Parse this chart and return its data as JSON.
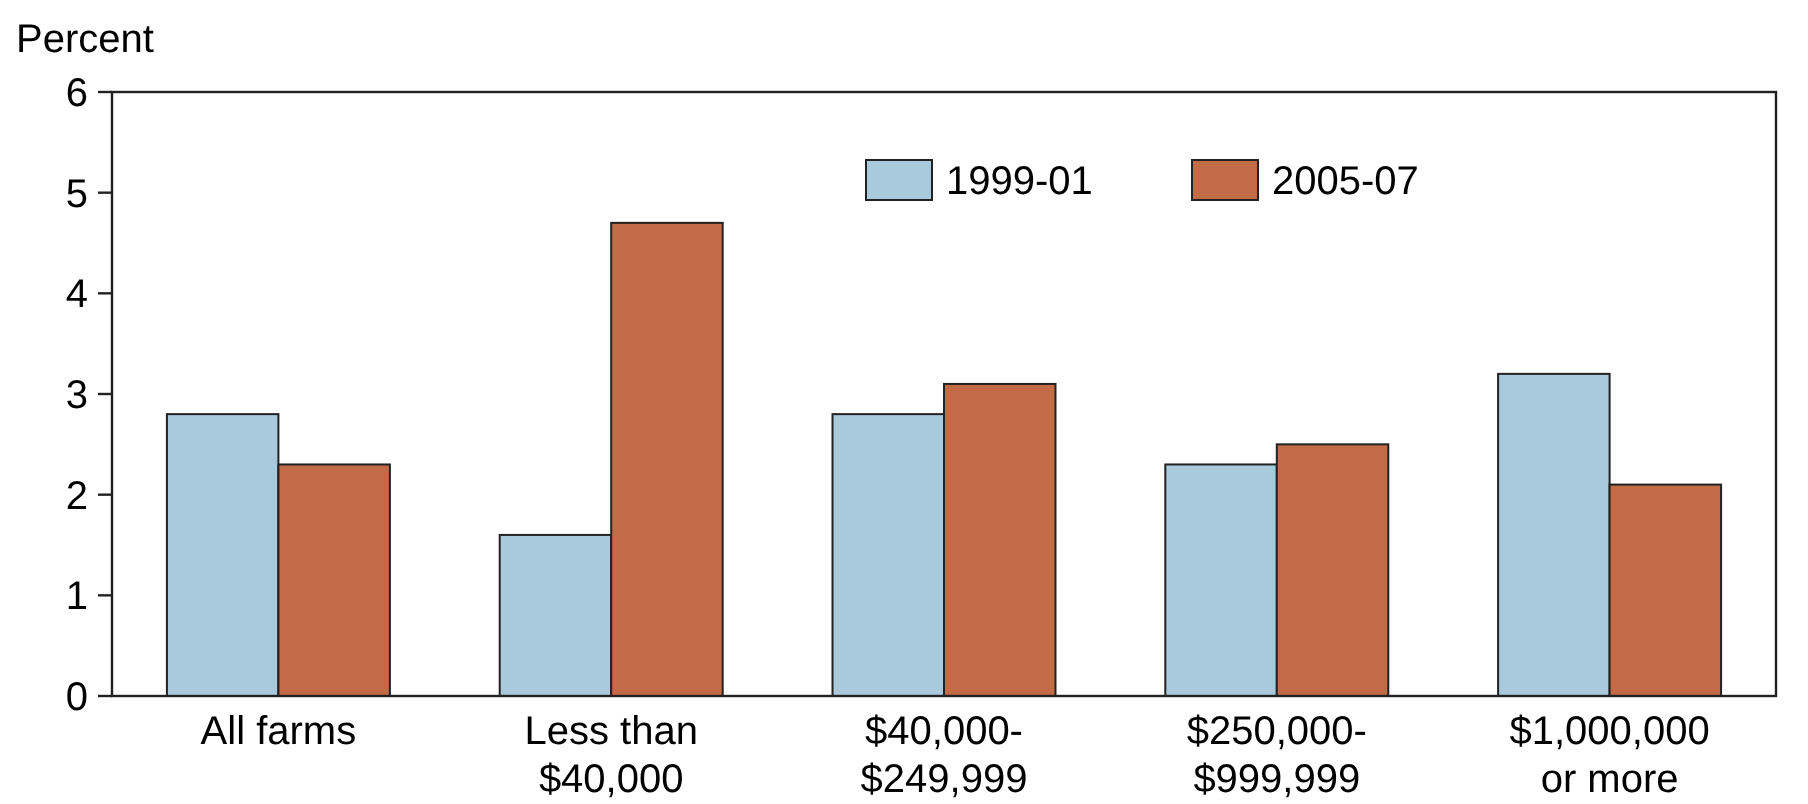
{
  "chart_data": {
    "type": "bar",
    "ylabel": "Percent",
    "categories": [
      "All farms",
      "Less than\n$40,000",
      "$40,000-\n$249,999",
      "$250,000-\n$999,999",
      "$1,000,000\nor more"
    ],
    "series": [
      {
        "name": "1999-01",
        "color": "#a9cadc",
        "values": [
          2.8,
          1.6,
          2.8,
          2.3,
          3.2
        ]
      },
      {
        "name": "2005-07",
        "color": "#c36b47",
        "values": [
          2.3,
          4.7,
          3.1,
          2.5,
          2.1
        ]
      }
    ],
    "ylim": [
      0,
      6
    ],
    "yticks": [
      0,
      1,
      2,
      3,
      4,
      5,
      6
    ],
    "grid": false,
    "legend": "top"
  }
}
